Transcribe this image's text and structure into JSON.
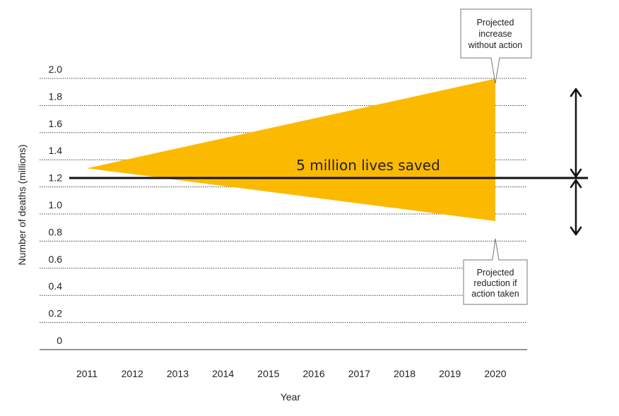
{
  "chart_data": {
    "type": "area",
    "xlabel": "Year",
    "ylabel": "Number of deaths (millions)",
    "x": [
      "2011",
      "2012",
      "2013",
      "2014",
      "2015",
      "2016",
      "2017",
      "2018",
      "2019",
      "2020"
    ],
    "y_ticks": [
      "0",
      "0.2",
      "0.4",
      "0.6",
      "0.8",
      "1.0",
      "1.2",
      "1.4",
      "1.6",
      "1.8",
      "2.0"
    ],
    "ylim": [
      0,
      2.0
    ],
    "grid": true,
    "baseline": {
      "value": 1.2
    },
    "series": [
      {
        "values": [
          1.27,
          1.343,
          1.417,
          1.49,
          1.563,
          1.637,
          1.71,
          1.783,
          1.857,
          1.93
        ]
      },
      {
        "values": [
          1.27,
          1.227,
          1.183,
          1.14,
          1.097,
          1.053,
          1.01,
          0.967,
          0.923,
          0.88
        ]
      }
    ],
    "fill_color": "#FBBA00",
    "annotations": {
      "band_label": "5 million lives saved",
      "upper_callout": [
        "Projected",
        "increase",
        "without action"
      ],
      "lower_callout": [
        "Projected",
        "reduction if",
        "action taken"
      ]
    }
  }
}
